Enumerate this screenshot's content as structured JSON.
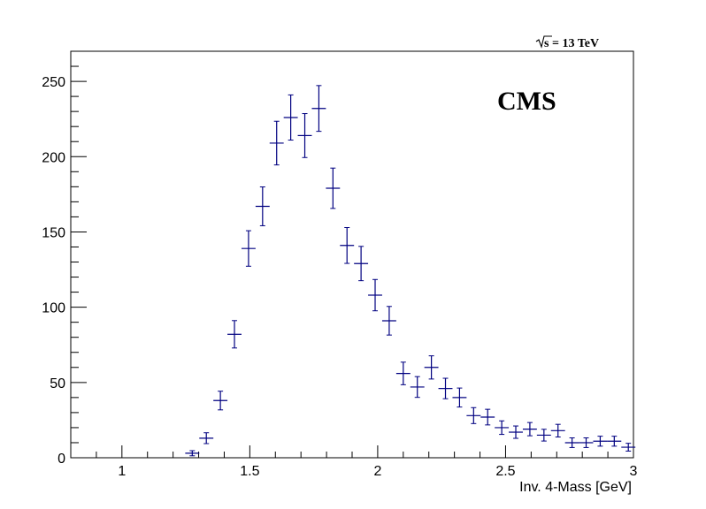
{
  "chart_data": {
    "type": "scatter",
    "title": "",
    "xlabel": "Inv. 4-Mass [GeV]",
    "ylabel": "",
    "xlim": [
      0.8,
      3.0
    ],
    "ylim": [
      0,
      270
    ],
    "x_ticks": [
      1,
      1.5,
      2,
      2.5,
      3
    ],
    "x_tick_labels": [
      "1",
      "1.5",
      "2",
      "2.5",
      "3"
    ],
    "y_ticks": [
      0,
      50,
      100,
      150,
      200,
      250
    ],
    "y_tick_labels": [
      "0",
      "50",
      "100",
      "150",
      "200",
      "250"
    ],
    "grid": false,
    "annotations": {
      "energy_symbol": "s",
      "energy_text": " = 13 TeV",
      "experiment": "CMS"
    },
    "series": [
      {
        "color": "#000080",
        "bin_half_width": 0.0275,
        "x": [
          1.275,
          1.33,
          1.385,
          1.44,
          1.495,
          1.55,
          1.605,
          1.66,
          1.715,
          1.77,
          1.825,
          1.88,
          1.935,
          1.99,
          2.045,
          2.1,
          2.155,
          2.21,
          2.265,
          2.32,
          2.375,
          2.43,
          2.485,
          2.54,
          2.595,
          2.65,
          2.705,
          2.76,
          2.815,
          2.87,
          2.925,
          2.98
        ],
        "y": [
          3,
          13,
          38,
          82,
          139,
          167,
          209,
          226,
          214,
          232,
          179,
          141,
          129,
          108,
          91,
          56,
          47,
          60,
          46,
          40,
          28,
          27,
          20,
          17,
          19,
          15,
          18,
          10,
          10,
          11,
          11,
          7
        ],
        "y_err": [
          1.7,
          3.6,
          6.2,
          9.1,
          11.8,
          12.9,
          14.5,
          15.0,
          14.6,
          15.2,
          13.4,
          11.9,
          11.4,
          10.4,
          9.5,
          7.5,
          6.9,
          7.7,
          6.8,
          6.3,
          5.3,
          5.2,
          4.5,
          4.1,
          4.4,
          3.9,
          4.2,
          3.2,
          3.2,
          3.3,
          3.3,
          2.6
        ]
      }
    ]
  }
}
